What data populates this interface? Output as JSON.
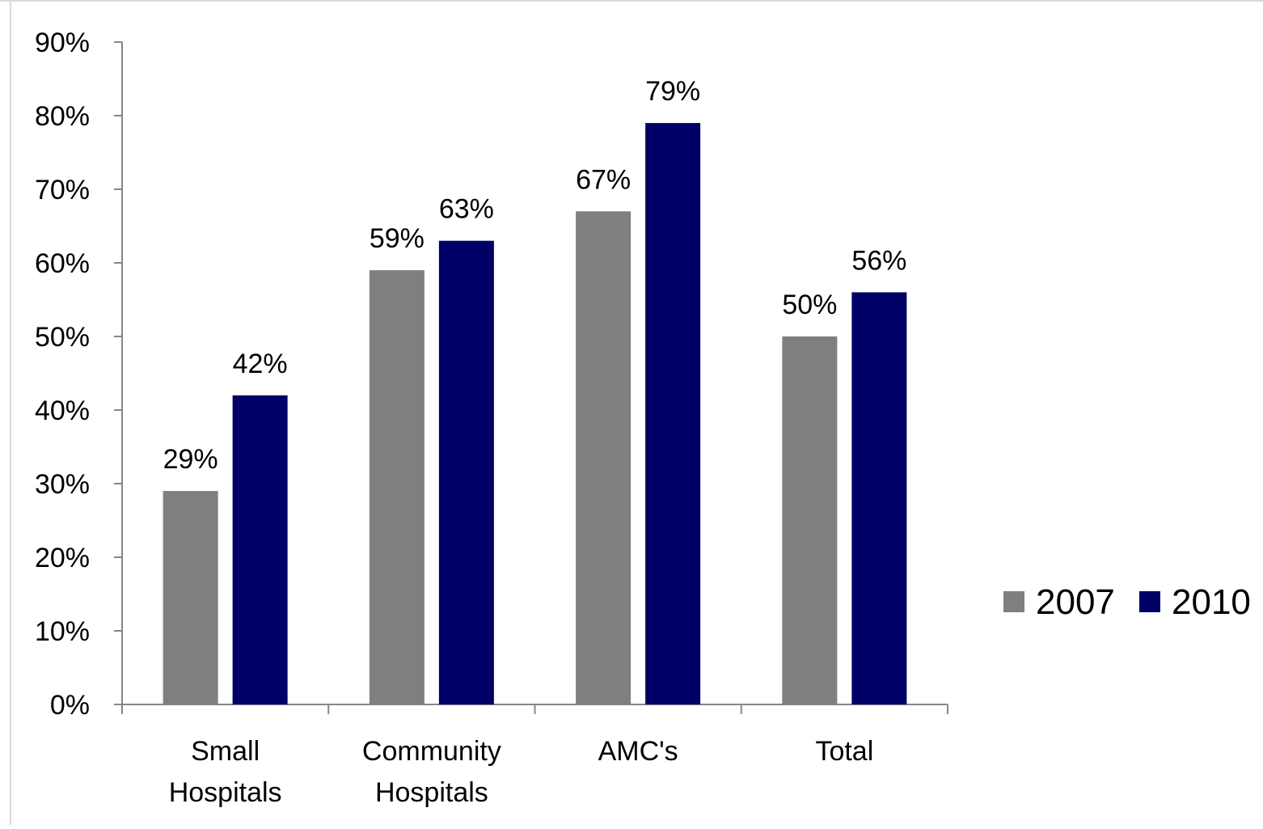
{
  "chart_data": {
    "type": "bar",
    "title": "",
    "xlabel": "",
    "ylabel": "",
    "categories": [
      [
        "Small",
        "Hospitals"
      ],
      [
        "Community",
        "Hospitals"
      ],
      [
        "AMC's"
      ],
      [
        "Total"
      ]
    ],
    "series": [
      {
        "name": "2007",
        "color": "#7f7f7f",
        "values": [
          29,
          59,
          67,
          50
        ],
        "labels": [
          "29%",
          "59%",
          "67%",
          "50%"
        ]
      },
      {
        "name": "2010",
        "color": "#000066",
        "values": [
          42,
          63,
          79,
          56
        ],
        "labels": [
          "42%",
          "63%",
          "79%",
          "56%"
        ]
      }
    ],
    "ylim": [
      0,
      90
    ],
    "yticks": [
      0,
      10,
      20,
      30,
      40,
      50,
      60,
      70,
      80,
      90
    ],
    "ytick_labels": [
      "0%",
      "10%",
      "20%",
      "30%",
      "40%",
      "50%",
      "60%",
      "70%",
      "80%",
      "90%"
    ],
    "grid": false,
    "legend_position": "right"
  }
}
